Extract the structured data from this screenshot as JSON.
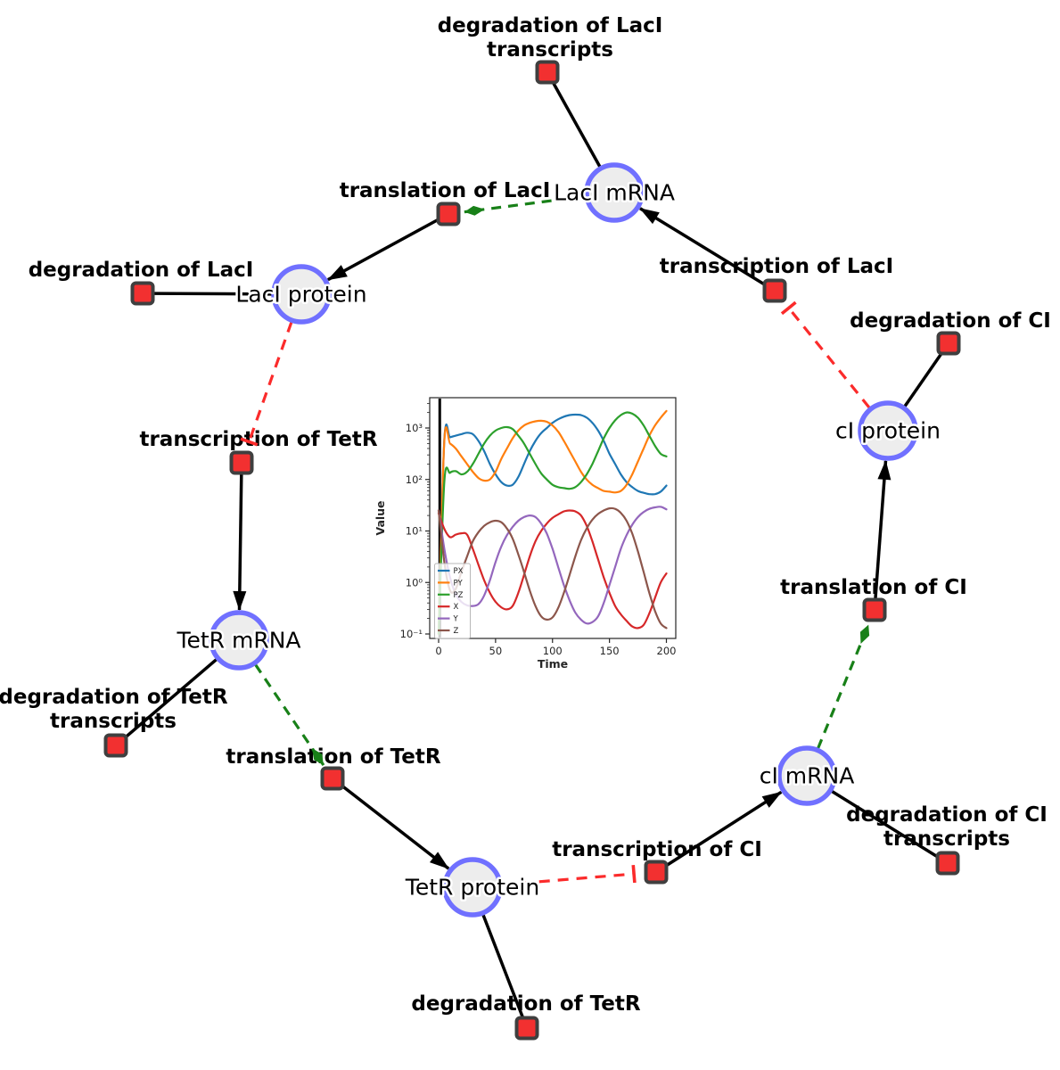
{
  "diagram": {
    "species": [
      {
        "id": "laci_mrna",
        "label": "LacI mRNA"
      },
      {
        "id": "laci_protein",
        "label": "LacI protein"
      },
      {
        "id": "tetr_mrna",
        "label": "TetR mRNA"
      },
      {
        "id": "tetr_protein",
        "label": "TetR protein"
      },
      {
        "id": "ci_mrna",
        "label": "cI mRNA"
      },
      {
        "id": "ci_protein",
        "label": "cI protein"
      }
    ],
    "reactions": [
      {
        "id": "deg_laci_tx",
        "label_lines": [
          "degradation of LacI",
          "transcripts"
        ]
      },
      {
        "id": "transl_laci",
        "label_lines": [
          "translation of LacI"
        ]
      },
      {
        "id": "deg_laci",
        "label_lines": [
          "degradation of LacI"
        ]
      },
      {
        "id": "tx_laci",
        "label_lines": [
          "transcription of LacI"
        ]
      },
      {
        "id": "deg_ci",
        "label_lines": [
          "degradation of CI"
        ]
      },
      {
        "id": "tx_tetr",
        "label_lines": [
          "transcription of TetR"
        ]
      },
      {
        "id": "deg_tetr_tx",
        "label_lines": [
          "degradation of TetR",
          "transcripts"
        ]
      },
      {
        "id": "transl_tetr",
        "label_lines": [
          "translation of TetR"
        ]
      },
      {
        "id": "deg_tetr",
        "label_lines": [
          "degradation of TetR"
        ]
      },
      {
        "id": "tx_ci",
        "label_lines": [
          "transcription of CI"
        ]
      },
      {
        "id": "deg_ci_tx",
        "label_lines": [
          "degradation of CI",
          "transcripts"
        ]
      },
      {
        "id": "transl_ci",
        "label_lines": [
          "translation of CI"
        ]
      }
    ],
    "edges": [
      {
        "from": "laci_mrna",
        "to": "deg_laci_tx",
        "type": "line"
      },
      {
        "from": "tx_laci",
        "to": "laci_mrna",
        "type": "arrow"
      },
      {
        "from": "laci_mrna",
        "to": "transl_laci",
        "type": "activation"
      },
      {
        "from": "transl_laci",
        "to": "laci_protein",
        "type": "arrow"
      },
      {
        "from": "laci_protein",
        "to": "deg_laci",
        "type": "line"
      },
      {
        "from": "laci_protein",
        "to": "tx_tetr",
        "type": "inhibition"
      },
      {
        "from": "tx_tetr",
        "to": "tetr_mrna",
        "type": "arrow"
      },
      {
        "from": "tetr_mrna",
        "to": "deg_tetr_tx",
        "type": "line"
      },
      {
        "from": "tetr_mrna",
        "to": "transl_tetr",
        "type": "activation"
      },
      {
        "from": "transl_tetr",
        "to": "tetr_protein",
        "type": "arrow"
      },
      {
        "from": "tetr_protein",
        "to": "deg_tetr",
        "type": "line"
      },
      {
        "from": "tetr_protein",
        "to": "tx_ci",
        "type": "inhibition"
      },
      {
        "from": "tx_ci",
        "to": "ci_mrna",
        "type": "arrow"
      },
      {
        "from": "ci_mrna",
        "to": "deg_ci_tx",
        "type": "line"
      },
      {
        "from": "ci_mrna",
        "to": "transl_ci",
        "type": "activation"
      },
      {
        "from": "transl_ci",
        "to": "ci_protein",
        "type": "arrow"
      },
      {
        "from": "ci_protein",
        "to": "deg_ci",
        "type": "line"
      },
      {
        "from": "ci_protein",
        "to": "tx_laci",
        "type": "inhibition"
      }
    ],
    "colors": {
      "species_fill": "#ededed",
      "species_stroke": "#7070ff",
      "reaction_fill": "#f23030",
      "reaction_stroke": "#3f3f3f",
      "edge_black": "#000000",
      "edge_activation": "#188018",
      "edge_inhibition": "#fb2b2b"
    }
  },
  "chart_data": {
    "type": "line",
    "title": "",
    "xlabel": "Time",
    "ylabel": "Value",
    "x_ticks": [
      0,
      50,
      100,
      150,
      200
    ],
    "y_scale": "log",
    "y_tick_values": [
      0.1,
      1,
      10,
      100,
      1000
    ],
    "y_tick_labels": [
      "10⁻¹",
      "10⁰",
      "10¹",
      "10²",
      "10³"
    ],
    "xlim": [
      -8,
      208
    ],
    "ylim": [
      0.08,
      4200
    ],
    "grid": false,
    "legend_position": "lower left",
    "annotation_vline_x": 1,
    "x": [
      0,
      5,
      10,
      15,
      20,
      25,
      30,
      35,
      40,
      45,
      50,
      55,
      60,
      65,
      70,
      75,
      80,
      85,
      90,
      95,
      100,
      105,
      110,
      115,
      120,
      125,
      130,
      135,
      140,
      145,
      150,
      155,
      160,
      165,
      170,
      175,
      180,
      185,
      190,
      195,
      200
    ],
    "series": [
      {
        "name": "PX",
        "color": "#1f77b4",
        "values": [
          0.1,
          600,
          660,
          710,
          760,
          810,
          760,
          560,
          355,
          200,
          126,
          89,
          76,
          79,
          112,
          200,
          355,
          560,
          795,
          1000,
          1260,
          1480,
          1660,
          1780,
          1820,
          1780,
          1590,
          1260,
          890,
          560,
          316,
          200,
          126,
          89,
          71,
          60,
          55,
          52,
          52,
          58,
          76
        ]
      },
      {
        "name": "PY",
        "color": "#ff7f0e",
        "values": [
          0.1,
          560,
          500,
          400,
          282,
          200,
          141,
          107,
          95,
          100,
          141,
          251,
          400,
          630,
          890,
          1120,
          1260,
          1350,
          1380,
          1320,
          1120,
          850,
          560,
          355,
          224,
          141,
          100,
          79,
          68,
          60,
          58,
          56,
          60,
          79,
          126,
          224,
          400,
          710,
          1120,
          1580,
          2140
        ]
      },
      {
        "name": "PZ",
        "color": "#2ca02c",
        "values": [
          0.1,
          90,
          135,
          145,
          126,
          141,
          200,
          316,
          500,
          710,
          890,
          1000,
          1040,
          955,
          710,
          500,
          316,
          200,
          132,
          100,
          79,
          71,
          68,
          66,
          71,
          89,
          126,
          200,
          355,
          630,
          1000,
          1410,
          1780,
          2000,
          1900,
          1580,
          1120,
          710,
          450,
          316,
          280
        ]
      },
      {
        "name": "X",
        "color": "#d62728",
        "values": [
          22,
          11,
          7.6,
          8.5,
          9,
          8.5,
          4.5,
          2.2,
          1.1,
          0.63,
          0.42,
          0.33,
          0.3,
          0.35,
          0.63,
          1.4,
          3.2,
          6.3,
          10,
          14,
          18,
          21,
          24,
          25,
          24,
          20,
          12.6,
          6.3,
          2.8,
          1.26,
          0.63,
          0.35,
          0.24,
          0.18,
          0.14,
          0.13,
          0.15,
          0.25,
          0.5,
          1.0,
          1.5
        ]
      },
      {
        "name": "Y",
        "color": "#9467bd",
        "values": [
          25,
          4.5,
          1.26,
          0.6,
          0.42,
          0.36,
          0.35,
          0.38,
          0.56,
          1.1,
          2.5,
          5.0,
          8.3,
          12,
          15.8,
          18.6,
          20,
          18.6,
          14,
          8.9,
          4.5,
          2.0,
          0.89,
          0.45,
          0.26,
          0.19,
          0.16,
          0.17,
          0.22,
          0.4,
          0.89,
          2.0,
          4.5,
          8.3,
          13.2,
          18.6,
          23.4,
          26.9,
          28.8,
          29.5,
          26.3
        ]
      },
      {
        "name": "Z",
        "color": "#8c564b",
        "values": [
          25,
          2.5,
          0.7,
          0.75,
          1.6,
          3.2,
          6.3,
          9.5,
          12.6,
          14.8,
          15.8,
          14.8,
          11.2,
          7.1,
          3.5,
          1.6,
          0.7,
          0.35,
          0.22,
          0.19,
          0.21,
          0.32,
          0.63,
          1.4,
          3.2,
          6.6,
          11.2,
          16.6,
          21.4,
          25,
          27.5,
          26.9,
          22.4,
          15.8,
          8.9,
          4.0,
          1.6,
          0.63,
          0.28,
          0.16,
          0.13
        ]
      }
    ]
  }
}
